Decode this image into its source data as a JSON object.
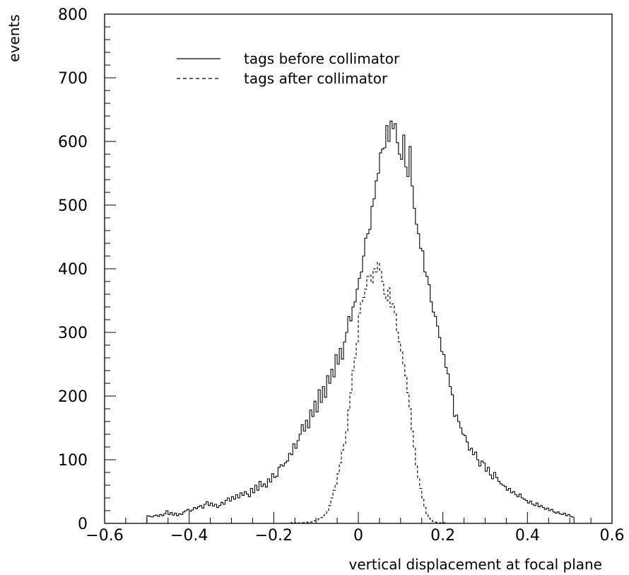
{
  "chart_data": {
    "type": "line",
    "style": "step-histogram",
    "xlabel": "vertical displacement at focal plane",
    "ylabel": "events",
    "xlim": [
      -0.6,
      0.6
    ],
    "ylim": [
      0,
      800
    ],
    "x_ticks": [
      -0.6,
      -0.4,
      -0.2,
      0,
      0.2,
      0.4,
      0.6
    ],
    "x_tick_labels": [
      "−0.6",
      "−0.4",
      "−0.2",
      "0",
      "0.2",
      "0.4",
      "0.6"
    ],
    "y_ticks": [
      0,
      100,
      200,
      300,
      400,
      500,
      600,
      700,
      800
    ],
    "y_tick_labels": [
      "0",
      "100",
      "200",
      "300",
      "400",
      "500",
      "600",
      "700",
      "800"
    ],
    "grid": false,
    "legend_position": "top-left",
    "bin_width": 0.005,
    "series": [
      {
        "name": "tags before collimator",
        "line_style": "solid",
        "x_start": -0.5,
        "values": [
          12,
          11,
          10,
          12,
          13,
          11,
          14,
          12,
          15,
          20,
          14,
          17,
          13,
          16,
          12,
          15,
          14,
          18,
          20,
          22,
          19,
          21,
          25,
          23,
          26,
          28,
          24,
          30,
          34,
          28,
          32,
          27,
          30,
          25,
          28,
          33,
          30,
          36,
          40,
          35,
          42,
          38,
          45,
          40,
          48,
          44,
          50,
          46,
          42,
          55,
          48,
          60,
          52,
          66,
          58,
          62,
          57,
          70,
          65,
          78,
          72,
          74,
          88,
          92,
          90,
          95,
          98,
          110,
          108,
          125,
          118,
          130,
          140,
          155,
          145,
          162,
          150,
          178,
          168,
          192,
          175,
          210,
          190,
          215,
          198,
          232,
          220,
          242,
          230,
          265,
          250,
          275,
          258,
          285,
          300,
          325,
          318,
          340,
          348,
          368,
          385,
          395,
          420,
          448,
          455,
          462,
          498,
          510,
          538,
          550,
          582,
          588,
          590,
          625,
          600,
          632,
          620,
          628,
          598,
          580,
          572,
          610,
          560,
          545,
          592,
          530,
          495,
          470,
          455,
          432,
          428,
          395,
          388,
          375,
          348,
          332,
          325,
          310,
          292,
          270,
          265,
          245,
          235,
          215,
          202,
          168,
          170,
          160,
          150,
          140,
          138,
          128,
          115,
          118,
          108,
          112,
          100,
          90,
          98,
          95,
          82,
          88,
          76,
          70,
          80,
          72,
          66,
          62,
          60,
          58,
          52,
          55,
          48,
          50,
          45,
          42,
          46,
          40,
          38,
          36,
          32,
          35,
          30,
          28,
          32,
          26,
          28,
          25,
          22,
          24,
          20,
          22,
          18,
          16,
          18,
          15,
          14,
          16,
          12,
          14,
          11,
          10
        ]
      },
      {
        "name": "tags after collimator",
        "line_style": "dashed",
        "x_start": -0.5,
        "values": [
          0,
          0,
          0,
          0,
          0,
          0,
          0,
          0,
          0,
          0,
          0,
          0,
          0,
          0,
          0,
          0,
          0,
          0,
          0,
          0,
          0,
          0,
          0,
          0,
          0,
          0,
          0,
          0,
          0,
          0,
          0,
          0,
          0,
          0,
          0,
          0,
          0,
          0,
          0,
          0,
          0,
          0,
          0,
          0,
          0,
          0,
          0,
          0,
          0,
          0,
          0,
          0,
          0,
          0,
          0,
          0,
          0,
          0,
          0,
          0,
          0,
          0,
          0,
          0,
          0,
          0,
          0,
          0,
          1,
          0,
          1,
          1,
          0,
          1,
          1,
          2,
          1,
          2,
          3,
          4,
          5,
          7,
          9,
          12,
          15,
          20,
          28,
          40,
          52,
          62,
          78,
          95,
          115,
          125,
          145,
          178,
          205,
          240,
          260,
          285,
          330,
          348,
          355,
          368,
          388,
          390,
          378,
          400,
          395,
          410,
          398,
          380,
          360,
          350,
          370,
          340,
          345,
          330,
          300,
          285,
          270,
          250,
          232,
          205,
          180,
          145,
          120,
          90,
          72,
          55,
          40,
          25,
          15,
          8,
          5,
          3,
          2,
          1,
          1,
          0,
          1,
          0,
          0,
          0,
          0,
          0,
          0,
          0,
          0,
          0,
          0,
          0,
          0,
          0,
          0,
          0,
          0,
          0,
          0,
          0,
          0,
          0,
          0,
          0,
          0,
          0,
          0,
          0,
          0,
          0,
          0,
          0,
          0,
          0,
          0,
          0,
          0,
          0,
          0,
          0,
          0,
          0,
          0,
          0,
          0,
          0,
          0,
          0,
          0,
          0,
          0,
          0,
          0,
          0,
          0,
          0,
          0,
          0,
          0,
          0,
          0,
          0,
          0,
          0,
          0
        ]
      }
    ]
  }
}
